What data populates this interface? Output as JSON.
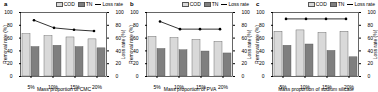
{
  "chart_data": [
    {
      "type": "bar",
      "title": "a",
      "xlabel": "Mass proportion of CMC",
      "ylabel": "Removal rate (%)",
      "y2label": "Loss rate (%)",
      "categories": [
        "5%",
        "10%",
        "15%",
        "20%"
      ],
      "series": [
        {
          "name": "COD",
          "color": "#d9d9d9",
          "values": [
            66,
            63,
            61,
            58
          ]
        },
        {
          "name": "TN",
          "color": "#7f7f7f",
          "values": [
            46,
            48,
            46,
            44
          ]
        },
        {
          "name": "Loss rate",
          "type": "line",
          "axis": "y2",
          "color": "#000000",
          "marker": "circle",
          "values": [
            88,
            76,
            73,
            71
          ]
        }
      ],
      "ylim": [
        0,
        100
      ],
      "yticks": [
        0,
        20,
        40,
        60,
        80,
        100
      ],
      "y2lim": [
        0,
        100
      ],
      "y2ticks": [
        0,
        20,
        40,
        60,
        80,
        100
      ],
      "legend": "upper right"
    },
    {
      "type": "bar",
      "title": "b",
      "xlabel": "Mass proportion of PVA",
      "ylabel": "Removal rate (%)",
      "y2label": "Loss rate (%)",
      "categories": [
        "5%",
        "10%",
        "15%",
        "20%"
      ],
      "series": [
        {
          "name": "COD",
          "color": "#d9d9d9",
          "values": [
            62,
            60,
            57,
            54
          ]
        },
        {
          "name": "TN",
          "color": "#7f7f7f",
          "values": [
            43,
            41,
            39,
            36
          ]
        },
        {
          "name": "Loss rate",
          "type": "line",
          "axis": "y2",
          "color": "#000000",
          "marker": "circle",
          "values": [
            86,
            74,
            74,
            74
          ]
        }
      ],
      "ylim": [
        0,
        100
      ],
      "yticks": [
        0,
        20,
        40,
        60,
        80,
        100
      ],
      "y2lim": [
        0,
        100
      ],
      "y2ticks": [
        0,
        20,
        40,
        60,
        80,
        100
      ],
      "legend": "upper right"
    },
    {
      "type": "bar",
      "title": "c",
      "xlabel": "Mass proportion of sodium silicate",
      "ylabel": "Removal rate (%)",
      "y2label": "Loss rate (%)",
      "categories": [
        "5%",
        "10%",
        "15%",
        "20%"
      ],
      "series": [
        {
          "name": "COD",
          "color": "#d9d9d9",
          "values": [
            70,
            72,
            68,
            70
          ]
        },
        {
          "name": "TN",
          "color": "#7f7f7f",
          "values": [
            48,
            50,
            40,
            30
          ]
        },
        {
          "name": "Loss rate",
          "type": "line",
          "axis": "y2",
          "color": "#000000",
          "marker": "circle",
          "values": [
            90,
            90,
            90,
            90
          ]
        }
      ],
      "ylim": [
        0,
        100
      ],
      "yticks": [
        0,
        20,
        40,
        60,
        80,
        100
      ],
      "y2lim": [
        0,
        100
      ],
      "y2ticks": [
        0,
        20,
        40,
        60,
        80,
        100
      ],
      "legend": "upper right"
    }
  ]
}
